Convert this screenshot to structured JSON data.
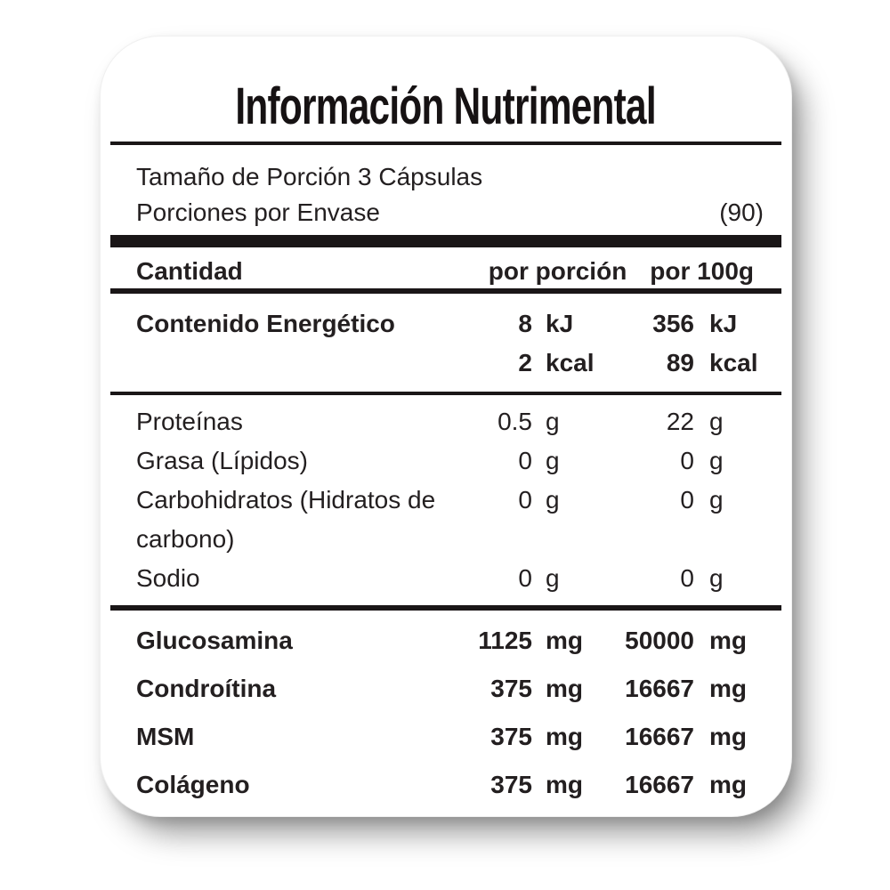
{
  "colors": {
    "text": "#231f20",
    "rule": "#1a1617",
    "background": "#ffffff"
  },
  "header": {
    "title": "Información Nutrimental"
  },
  "serving": {
    "size": "Tamaño de Porción 3 Cápsulas",
    "per_container_label": "Porciones por Envase",
    "per_container_value": "(90)"
  },
  "columns": {
    "amount": "Cantidad",
    "per_serving": "por porción",
    "per_100g": "por 100g"
  },
  "energy_rows": [
    {
      "label": "Contenido Energético",
      "per_serving_value": "8",
      "per_serving_unit": "kJ",
      "per_100g_value": "356",
      "per_100g_unit": "kJ"
    },
    {
      "label": "",
      "per_serving_value": "2",
      "per_serving_unit": "kcal",
      "per_100g_value": "89",
      "per_100g_unit": "kcal"
    }
  ],
  "nutrient_rows": [
    {
      "label": "Proteínas",
      "per_serving_value": "0.5",
      "per_serving_unit": "g",
      "per_100g_value": "22",
      "per_100g_unit": "g"
    },
    {
      "label": "Grasa (Lípidos)",
      "per_serving_value": "0",
      "per_serving_unit": "g",
      "per_100g_value": "0",
      "per_100g_unit": "g"
    },
    {
      "label": "Carbohidratos (Hidratos de carbono)",
      "per_serving_value": "0",
      "per_serving_unit": "g",
      "per_100g_value": "0",
      "per_100g_unit": "g"
    },
    {
      "label": "Sodio",
      "per_serving_value": "0",
      "per_serving_unit": "g",
      "per_100g_value": "0",
      "per_100g_unit": "g"
    }
  ],
  "supplement_rows": [
    {
      "label": "Glucosamina",
      "per_serving_value": "1125",
      "per_serving_unit": "mg",
      "per_100g_value": "50000",
      "per_100g_unit": "mg"
    },
    {
      "label": "Condroítina",
      "per_serving_value": "375",
      "per_serving_unit": "mg",
      "per_100g_value": "16667",
      "per_100g_unit": "mg"
    },
    {
      "label": "MSM",
      "per_serving_value": "375",
      "per_serving_unit": "mg",
      "per_100g_value": "16667",
      "per_100g_unit": "mg"
    },
    {
      "label": "Colágeno",
      "per_serving_value": "375",
      "per_serving_unit": "mg",
      "per_100g_value": "16667",
      "per_100g_unit": "mg"
    }
  ]
}
